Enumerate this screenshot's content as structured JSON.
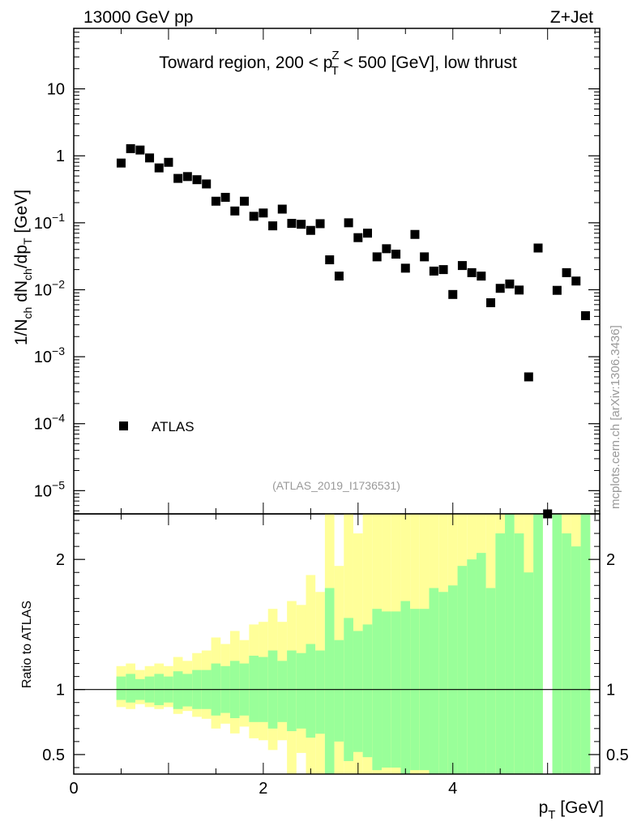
{
  "header": {
    "left": "13000 GeV pp",
    "right": "Z+Jet"
  },
  "side_label": "mcplots.cern.ch [arXiv:1306.3436]",
  "colors": {
    "data": "#000000",
    "band_inner": "#99ff99",
    "band_outer": "#ffff99",
    "ref_line": "#000000",
    "watermark": "#999999"
  },
  "chart_data": [
    {
      "type": "scatter",
      "title_parts": {
        "prefix": "Toward region, 200 < p",
        "sup": "Z",
        "sub": "T",
        "suffix": " < 500 [GeV], low thrust"
      },
      "ylabel_parts": [
        "1/N",
        "ch",
        " dN",
        "ch",
        "/dp",
        "T",
        " [GeV]"
      ],
      "yscale": "log",
      "ylim": [
        4.5e-06,
        80
      ],
      "xlim": [
        0,
        5.55
      ],
      "yticks": [
        {
          "value": 1e-05,
          "mant": "10",
          "exp": "−5"
        },
        {
          "value": 0.0001,
          "mant": "10",
          "exp": "−4"
        },
        {
          "value": 0.001,
          "mant": "10",
          "exp": "−3"
        },
        {
          "value": 0.01,
          "mant": "10",
          "exp": "−2"
        },
        {
          "value": 0.1,
          "mant": "10",
          "exp": "−1"
        },
        {
          "value": 1,
          "mant": "1",
          "exp": ""
        },
        {
          "value": 10,
          "mant": "10",
          "exp": ""
        }
      ],
      "legend": {
        "label": "ATLAS",
        "position": "lower-left"
      },
      "watermark": "(ATLAS_2019_I1736531)",
      "series": [
        {
          "name": "ATLAS",
          "x": [
            0.5,
            0.6,
            0.7,
            0.8,
            0.9,
            1.0,
            1.1,
            1.2,
            1.3,
            1.4,
            1.5,
            1.6,
            1.7,
            1.8,
            1.9,
            2.0,
            2.1,
            2.2,
            2.3,
            2.4,
            2.5,
            2.6,
            2.7,
            2.8,
            2.9,
            3.0,
            3.1,
            3.2,
            3.3,
            3.4,
            3.5,
            3.6,
            3.7,
            3.8,
            3.9,
            4.0,
            4.1,
            4.2,
            4.3,
            4.4,
            4.5,
            4.6,
            4.7,
            4.8,
            4.9,
            5.0,
            5.1,
            5.2,
            5.3,
            5.4
          ],
          "y": [
            0.78,
            1.28,
            1.22,
            0.93,
            0.66,
            0.8,
            0.46,
            0.49,
            0.44,
            0.38,
            0.21,
            0.24,
            0.15,
            0.21,
            0.125,
            0.14,
            0.09,
            0.16,
            0.098,
            0.095,
            0.077,
            0.097,
            0.028,
            0.016,
            0.1,
            0.06,
            0.07,
            0.031,
            0.041,
            0.034,
            0.021,
            0.067,
            0.031,
            0.019,
            0.02,
            0.0085,
            0.023,
            0.018,
            0.016,
            0.0064,
            0.0105,
            0.0122,
            0.0099,
            0.0005,
            0.042,
            4.5e-06,
            0.0098,
            0.018,
            0.0135,
            0.0041
          ]
        }
      ]
    },
    {
      "type": "area",
      "ylabel": "Ratio to ATLAS",
      "xlabel_parts": {
        "main": "p",
        "sub": "T",
        "unit": " [GeV]"
      },
      "ylim": [
        0.35,
        2.35
      ],
      "xlim": [
        0,
        5.55
      ],
      "xticks": [
        0,
        2,
        4
      ],
      "yticks": [
        0.5,
        1,
        2
      ],
      "reference": 1,
      "bins_low": [
        0.45,
        0.55,
        0.65,
        0.75,
        0.85,
        0.95,
        1.05,
        1.15,
        1.25,
        1.35,
        1.45,
        1.55,
        1.65,
        1.75,
        1.85,
        1.95,
        2.05,
        2.15,
        2.25,
        2.35,
        2.45,
        2.55,
        2.65,
        2.75,
        2.85,
        2.95,
        3.05,
        3.15,
        3.25,
        3.35,
        3.45,
        3.55,
        3.65,
        3.75,
        3.85,
        3.95,
        4.05,
        4.15,
        4.25,
        4.35,
        4.45,
        4.55,
        4.65,
        4.75,
        4.85,
        4.95,
        5.05,
        5.15,
        5.25,
        5.35
      ],
      "bin_width": 0.1,
      "series": [
        {
          "name": "stat",
          "upper": [
            1.1,
            1.12,
            1.08,
            1.1,
            1.12,
            1.1,
            1.14,
            1.12,
            1.15,
            1.15,
            1.2,
            1.18,
            1.22,
            1.2,
            1.26,
            1.25,
            1.3,
            1.22,
            1.3,
            1.28,
            1.35,
            1.3,
            1.78,
            1.38,
            1.55,
            1.45,
            1.5,
            1.62,
            1.6,
            1.6,
            1.68,
            1.62,
            1.62,
            1.78,
            1.75,
            1.8,
            1.95,
            2.0,
            2.05,
            1.78,
            2.2,
            2.35,
            2.2,
            1.9,
            2.35,
            null,
            2.35,
            2.2,
            2.1,
            2.35
          ],
          "lower": [
            0.92,
            0.9,
            0.92,
            0.9,
            0.88,
            0.9,
            0.85,
            0.87,
            0.85,
            0.85,
            0.8,
            0.82,
            0.78,
            0.8,
            0.75,
            0.75,
            0.7,
            0.75,
            0.68,
            0.7,
            0.63,
            0.66,
            0.35,
            0.6,
            0.45,
            0.52,
            0.48,
            0.38,
            0.4,
            0.4,
            0.35,
            0.38,
            0.38,
            0.35,
            0.35,
            0.35,
            0.35,
            0.35,
            0.35,
            0.35,
            0.35,
            0.35,
            0.35,
            0.35,
            0.35,
            null,
            0.35,
            0.35,
            0.35,
            0.35
          ]
        },
        {
          "name": "total",
          "upper": [
            1.18,
            1.2,
            1.15,
            1.18,
            1.2,
            1.18,
            1.25,
            1.22,
            1.28,
            1.3,
            1.4,
            1.35,
            1.45,
            1.38,
            1.5,
            1.52,
            1.62,
            1.52,
            1.68,
            1.65,
            1.88,
            1.75,
            2.35,
            1.95,
            2.35,
            2.2,
            2.35,
            2.35,
            2.35,
            2.35,
            2.35,
            2.35,
            2.35,
            2.35,
            2.35,
            2.35,
            2.35,
            2.35,
            2.35,
            2.35,
            2.35,
            2.35,
            2.35,
            2.35,
            2.35,
            null,
            2.35,
            2.35,
            2.35,
            2.35
          ]
        }
      ]
    }
  ]
}
